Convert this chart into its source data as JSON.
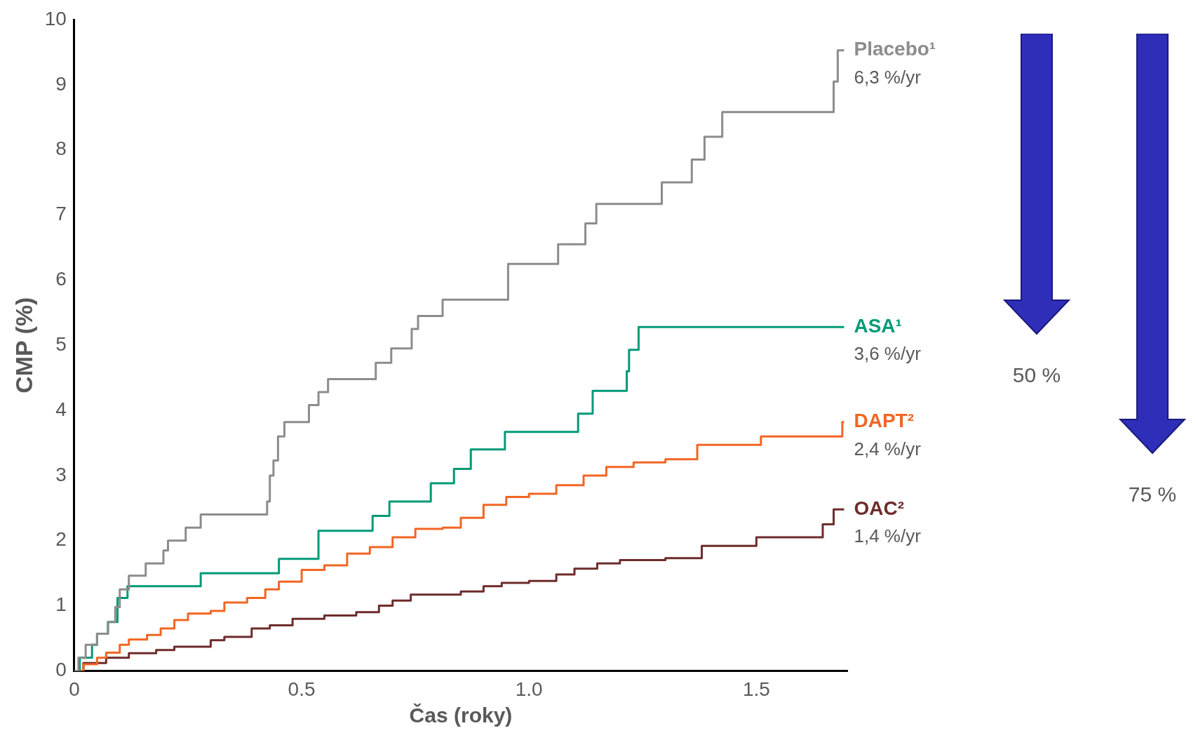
{
  "chart_data": {
    "type": "step",
    "xlabel": "Čas (roky)",
    "ylabel": "CMP (%)",
    "xlim": [
      0,
      1.7
    ],
    "ylim": [
      0,
      10
    ],
    "xticks": [
      0,
      0.5,
      {
        "value": 1,
        "label": "1.0"
      },
      1.5
    ],
    "yticks": [
      0,
      1,
      2,
      3,
      4,
      5,
      6,
      7,
      8,
      9,
      10
    ],
    "grid": false,
    "legend": false,
    "marker": "none",
    "line_style": "solid",
    "series": [
      {
        "name": "Placebo¹",
        "color": "#8c8c8c",
        "x": [
          0,
          0.009,
          0.025,
          0.05,
          0.074,
          0.09,
          0.1,
          0.12,
          0.157,
          0.196,
          0.206,
          0.245,
          0.278,
          0.424,
          0.43,
          0.438,
          0.448,
          0.462,
          0.516,
          0.537,
          0.558,
          0.663,
          0.697,
          0.742,
          0.756,
          0.81,
          0.954,
          1.064,
          1.124,
          1.148,
          1.292,
          1.358,
          1.386,
          1.425,
          1.67,
          1.679,
          1.693
        ],
        "values": [
          0,
          0.2,
          0.4,
          0.57,
          0.75,
          0.98,
          1.25,
          1.46,
          1.65,
          1.85,
          2.0,
          2.2,
          2.4,
          2.6,
          3.0,
          3.23,
          3.6,
          3.82,
          4.08,
          4.28,
          4.48,
          4.73,
          4.95,
          5.25,
          5.45,
          5.7,
          6.25,
          6.55,
          6.87,
          7.17,
          7.5,
          7.85,
          8.2,
          8.58,
          9.05,
          9.53,
          9.53
        ]
      },
      {
        "name": "ASA¹",
        "color": "#009a78",
        "x": [
          0,
          0.012,
          0.039,
          0.05,
          0.074,
          0.095,
          0.117,
          0.278,
          0.45,
          0.537,
          0.656,
          0.693,
          0.784,
          0.835,
          0.872,
          0.947,
          1.108,
          1.14,
          1.215,
          1.22,
          1.241,
          1.693
        ],
        "values": [
          0,
          0.2,
          0.4,
          0.57,
          0.75,
          1.12,
          1.3,
          1.5,
          1.72,
          2.15,
          2.38,
          2.6,
          2.88,
          3.1,
          3.4,
          3.67,
          3.95,
          4.3,
          4.6,
          4.93,
          5.28,
          5.28
        ]
      },
      {
        "name": "DAPT²",
        "color": "#f26522",
        "x": [
          0,
          0.02,
          0.05,
          0.07,
          0.1,
          0.12,
          0.16,
          0.19,
          0.22,
          0.25,
          0.3,
          0.33,
          0.38,
          0.42,
          0.45,
          0.5,
          0.55,
          0.6,
          0.65,
          0.7,
          0.75,
          0.81,
          0.85,
          0.9,
          0.95,
          1.0,
          1.06,
          1.12,
          1.17,
          1.23,
          1.3,
          1.37,
          1.51,
          1.689,
          1.693
        ],
        "values": [
          0,
          0.1,
          0.2,
          0.28,
          0.4,
          0.48,
          0.55,
          0.65,
          0.78,
          0.88,
          0.92,
          1.05,
          1.12,
          1.25,
          1.37,
          1.55,
          1.62,
          1.8,
          1.9,
          2.05,
          2.18,
          2.2,
          2.35,
          2.55,
          2.67,
          2.72,
          2.85,
          3.0,
          3.13,
          3.2,
          3.25,
          3.47,
          3.6,
          3.82,
          3.82
        ]
      },
      {
        "name": "OAC²",
        "color": "#6e2b2b",
        "x": [
          0,
          0.02,
          0.07,
          0.12,
          0.18,
          0.22,
          0.3,
          0.33,
          0.39,
          0.43,
          0.48,
          0.55,
          0.62,
          0.67,
          0.7,
          0.74,
          0.85,
          0.9,
          0.94,
          1.0,
          1.06,
          1.1,
          1.15,
          1.2,
          1.3,
          1.38,
          1.5,
          1.646,
          1.67,
          1.693
        ],
        "values": [
          0,
          0.12,
          0.2,
          0.27,
          0.32,
          0.37,
          0.47,
          0.52,
          0.65,
          0.7,
          0.8,
          0.85,
          0.9,
          1.0,
          1.08,
          1.17,
          1.22,
          1.3,
          1.35,
          1.38,
          1.48,
          1.57,
          1.65,
          1.7,
          1.73,
          1.92,
          2.05,
          2.25,
          2.48,
          2.48
        ]
      }
    ],
    "annotations": [
      "6,3 %/yr",
      "3,6 %/yr",
      "2,4 %/yr",
      "1,4 %/yr",
      "50 %",
      "75 %"
    ]
  }
}
